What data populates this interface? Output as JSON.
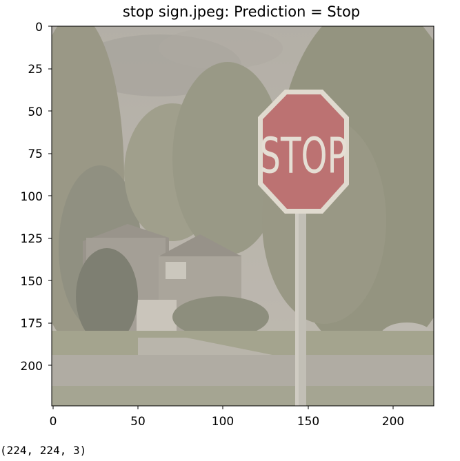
{
  "figure": {
    "title": "stop sign.jpeg: Prediction = Stop",
    "image_semantic": "stop sign photo",
    "sign_text": "STOP",
    "axes": {
      "xlim": [
        0,
        224
      ],
      "ylim": [
        224,
        0
      ],
      "xticks": [
        0,
        50,
        100,
        150,
        200
      ],
      "yticks": [
        0,
        25,
        50,
        75,
        100,
        125,
        150,
        175,
        200
      ]
    },
    "colors": {
      "sign_red": "#b0454a",
      "image_wash": "#c8c0b2"
    }
  },
  "output": {
    "shape_text": "(224, 224, 3)"
  }
}
